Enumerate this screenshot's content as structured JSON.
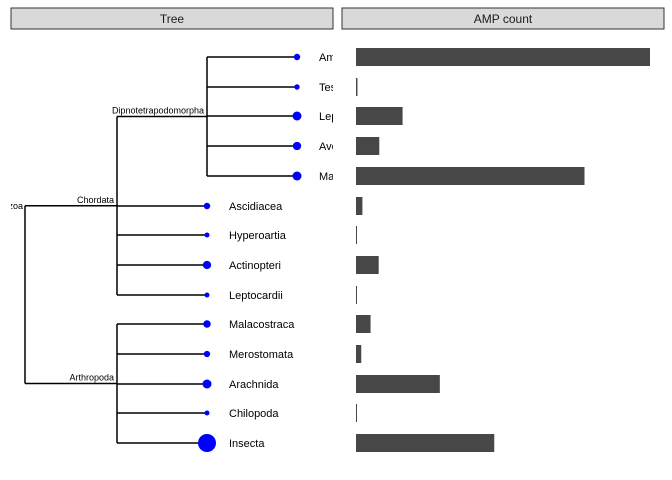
{
  "panels": {
    "tree_title": "Tree",
    "bar_title": "AMP count"
  },
  "colors": {
    "points": "#0000ff",
    "bars": "#474747",
    "strip": "#d9d9d9"
  },
  "chart_data": {
    "type": "bar",
    "orientation": "horizontal",
    "legend": "none",
    "grid": false,
    "categories": [
      "Amphibia",
      "Testudines",
      "Lepidosauria",
      "Aves",
      "Mammalia",
      "Ascidiacea",
      "Hyperoartia",
      "Actinopteri",
      "Leptocardii",
      "Malacostraca",
      "Merostomata",
      "Arachnida",
      "Chilopoda",
      "Insecta"
    ],
    "tick_labels": [
      "Am",
      "Tes",
      "Lep",
      "Ave",
      "Ma",
      "Ascidiacea",
      "Hyperoartia",
      "Actinopteri",
      "Leptocardii",
      "Malacostraca",
      "Merostomata",
      "Arachnida",
      "Chilopoda",
      "Insecta"
    ],
    "values": [
      1010,
      5,
      160,
      80,
      785,
      22,
      2,
      78,
      2,
      50,
      18,
      288,
      2,
      475
    ],
    "xlim": [
      0,
      1050
    ],
    "tree": {
      "root_label": "Protostomia/Deuterostomia root (Eumetazoa)",
      "root_label_visible": "zoa",
      "clades": [
        {
          "label": "Chordata"
        },
        {
          "label": "Dipnotetrapodomorpha"
        },
        {
          "label": "Arthropoda"
        }
      ]
    }
  }
}
